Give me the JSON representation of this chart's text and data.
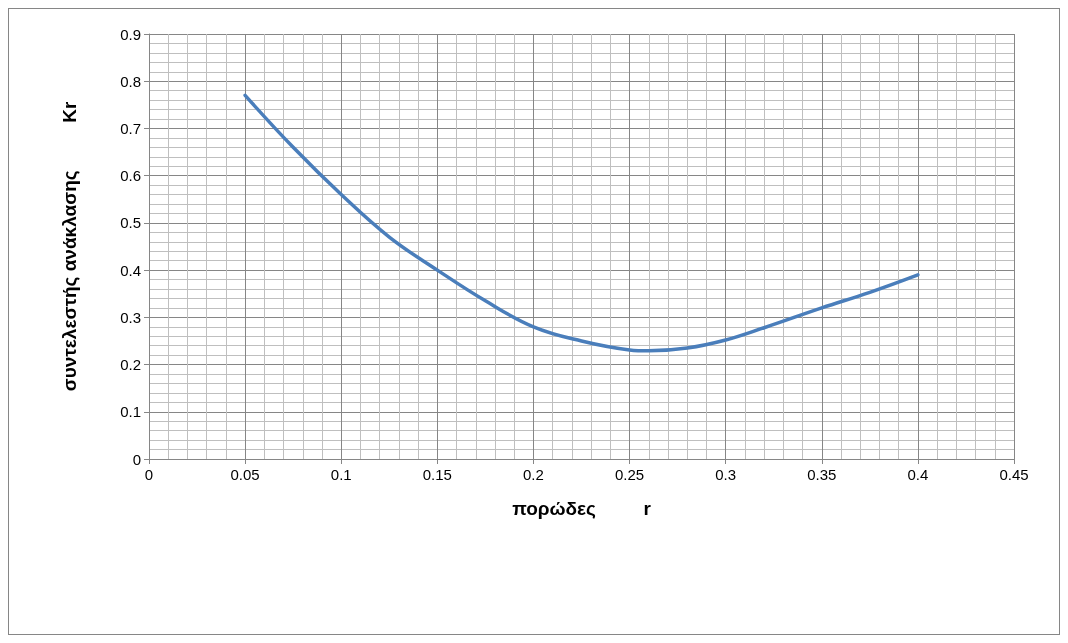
{
  "chart_data": {
    "type": "line",
    "xlabel": "πορώδες         r",
    "ylabel": "συντελεστής ανάκλασης         Kr",
    "series": [
      {
        "color": "#4a7ebb",
        "x": [
          0.05,
          0.075,
          0.1,
          0.125,
          0.15,
          0.175,
          0.2,
          0.225,
          0.25,
          0.26,
          0.28,
          0.3,
          0.32,
          0.35,
          0.375,
          0.4
        ],
        "values": [
          0.77,
          0.66,
          0.56,
          0.47,
          0.4,
          0.335,
          0.28,
          0.25,
          0.231,
          0.229,
          0.235,
          0.252,
          0.278,
          0.32,
          0.353,
          0.39
        ]
      }
    ],
    "xlim": [
      0,
      0.45
    ],
    "xticks": [
      0,
      0.05,
      0.1,
      0.15,
      0.2,
      0.25,
      0.3,
      0.35,
      0.4,
      0.45
    ],
    "ylim": [
      0,
      0.9
    ],
    "yticks": [
      0,
      0.1,
      0.2,
      0.3,
      0.4,
      0.5,
      0.6,
      0.7,
      0.8,
      0.9
    ],
    "grid": true,
    "marker": "none",
    "line_style": "solid"
  }
}
